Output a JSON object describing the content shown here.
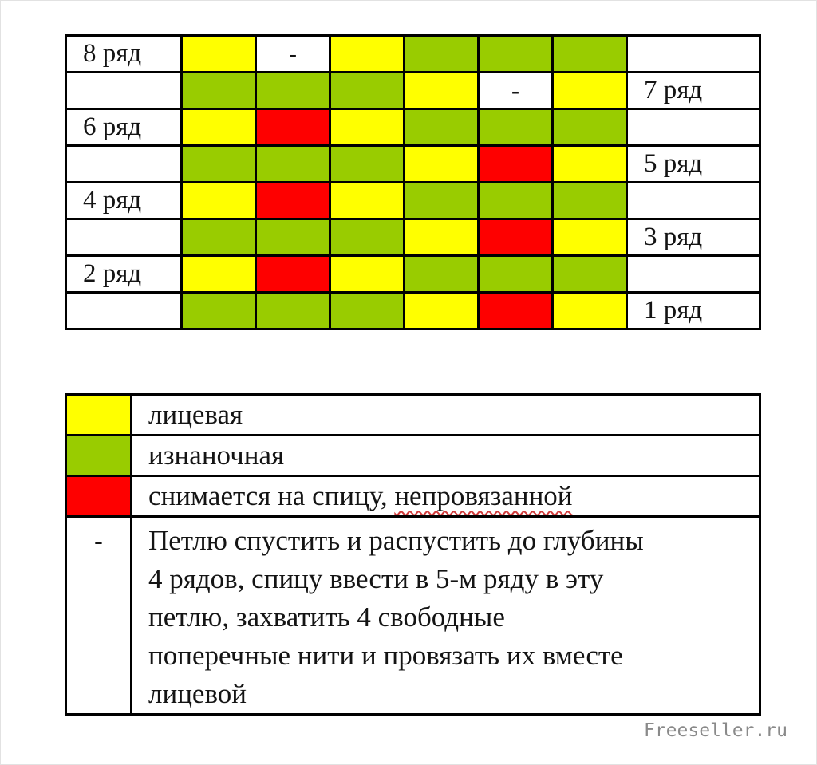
{
  "page": {
    "watermark": "Freeseller.ru"
  },
  "colors": {
    "yellow": "#ffff00",
    "green": "#99cc00",
    "red": "#fe0000",
    "white": "#ffffff",
    "border": "#000000",
    "watermark_gray": "#8a8a8a"
  },
  "chart_data": {
    "type": "heatmap",
    "title": "",
    "dash_symbol": "-",
    "columns": 6,
    "rows": [
      {
        "left_label": "8 ряд",
        "right_label": "",
        "cells": [
          "yellow",
          "dash",
          "yellow",
          "green",
          "green",
          "green"
        ]
      },
      {
        "left_label": "",
        "right_label": "7 ряд",
        "cells": [
          "green",
          "green",
          "green",
          "yellow",
          "dash",
          "yellow"
        ]
      },
      {
        "left_label": "6 ряд",
        "right_label": "",
        "cells": [
          "yellow",
          "red",
          "yellow",
          "green",
          "green",
          "green"
        ]
      },
      {
        "left_label": "",
        "right_label": "5 ряд",
        "cells": [
          "green",
          "green",
          "green",
          "yellow",
          "red",
          "yellow"
        ]
      },
      {
        "left_label": "4 ряд",
        "right_label": "",
        "cells": [
          "yellow",
          "red",
          "yellow",
          "green",
          "green",
          "green"
        ]
      },
      {
        "left_label": "",
        "right_label": "3 ряд",
        "cells": [
          "green",
          "green",
          "green",
          "yellow",
          "red",
          "yellow"
        ]
      },
      {
        "left_label": "2 ряд",
        "right_label": "",
        "cells": [
          "yellow",
          "red",
          "yellow",
          "green",
          "green",
          "green"
        ]
      },
      {
        "left_label": "",
        "right_label": "1 ряд",
        "cells": [
          "green",
          "green",
          "green",
          "yellow",
          "red",
          "yellow"
        ]
      }
    ]
  },
  "legend": {
    "rows": [
      {
        "swatch_color": "yellow",
        "symbol": "",
        "tall": false,
        "segments": [
          {
            "text": "лицевая",
            "misspelled": false
          }
        ]
      },
      {
        "swatch_color": "green",
        "symbol": "",
        "tall": false,
        "segments": [
          {
            "text": "изнаночная",
            "misspelled": false
          }
        ]
      },
      {
        "swatch_color": "red",
        "symbol": "",
        "tall": false,
        "segments": [
          {
            "text": "снимается на спицу, ",
            "misspelled": false
          },
          {
            "text": "непровязанной",
            "misspelled": true
          }
        ]
      },
      {
        "swatch_color": "",
        "symbol": "-",
        "tall": true,
        "segments": [
          {
            "text": "Петлю спустить и распустить до глубины\n4 рядов, спицу ввести в 5-м ряду в эту\nпетлю, захватить 4 свободные\nпоперечные нити и провязать их вместе\nлицевой",
            "misspelled": false
          }
        ]
      }
    ]
  }
}
